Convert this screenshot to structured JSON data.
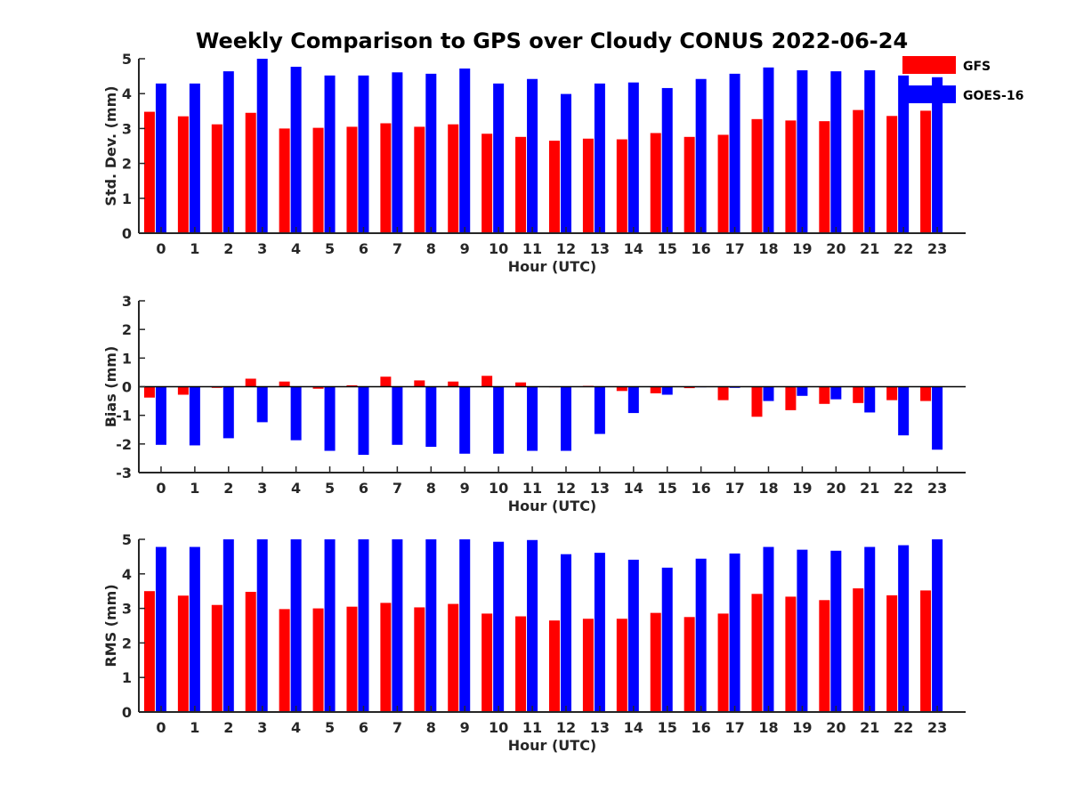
{
  "title": "Weekly Comparison to GPS over Cloudy CONUS 2022-06-24",
  "legend": [
    {
      "name": "GFS",
      "color": "#ff0000"
    },
    {
      "name": "GOES-16",
      "color": "#0000ff"
    }
  ],
  "chart_data": [
    {
      "type": "bar",
      "categories": [
        "0",
        "1",
        "2",
        "3",
        "4",
        "5",
        "6",
        "7",
        "8",
        "9",
        "10",
        "11",
        "12",
        "13",
        "14",
        "15",
        "16",
        "17",
        "18",
        "19",
        "20",
        "21",
        "22",
        "23"
      ],
      "xlabel": "Hour (UTC)",
      "ylabel": "Std. Dev. (mm)",
      "ylim": [
        0,
        5
      ],
      "yticks": [
        0,
        1,
        2,
        3,
        4,
        5
      ],
      "series": [
        {
          "name": "GFS",
          "color": "#ff0000",
          "values": [
            3.48,
            3.35,
            3.12,
            3.45,
            3.0,
            3.02,
            3.05,
            3.15,
            3.05,
            3.12,
            2.85,
            2.76,
            2.65,
            2.71,
            2.69,
            2.87,
            2.76,
            2.82,
            3.27,
            3.23,
            3.21,
            3.53,
            3.36,
            3.51
          ]
        },
        {
          "name": "GOES-16",
          "color": "#0000ff",
          "values": [
            4.29,
            4.29,
            4.64,
            5.0,
            4.77,
            4.52,
            4.52,
            4.61,
            4.57,
            4.72,
            4.29,
            4.42,
            3.99,
            4.29,
            4.32,
            4.16,
            4.42,
            4.57,
            4.75,
            4.67,
            4.64,
            4.67,
            4.52,
            4.47
          ]
        }
      ]
    },
    {
      "type": "bar",
      "categories": [
        "0",
        "1",
        "2",
        "3",
        "4",
        "5",
        "6",
        "7",
        "8",
        "9",
        "10",
        "11",
        "12",
        "13",
        "14",
        "15",
        "16",
        "17",
        "18",
        "19",
        "20",
        "21",
        "22",
        "23"
      ],
      "xlabel": "Hour (UTC)",
      "ylabel": "Bias (mm)",
      "ylim": [
        -3,
        3
      ],
      "yticks": [
        -3,
        -2,
        -1,
        0,
        1,
        2,
        3
      ],
      "series": [
        {
          "name": "GFS",
          "color": "#ff0000",
          "values": [
            -0.38,
            -0.28,
            -0.04,
            0.28,
            0.18,
            -0.07,
            0.05,
            0.35,
            0.22,
            0.18,
            0.38,
            0.15,
            -0.02,
            0.03,
            -0.15,
            -0.23,
            -0.05,
            -0.47,
            -1.05,
            -0.82,
            -0.6,
            -0.57,
            -0.47,
            -0.5
          ]
        },
        {
          "name": "GOES-16",
          "color": "#0000ff",
          "values": [
            -2.03,
            -2.05,
            -1.8,
            -1.24,
            -1.87,
            -2.24,
            -2.38,
            -2.03,
            -2.1,
            -2.34,
            -2.34,
            -2.24,
            -2.24,
            -1.65,
            -0.92,
            -0.28,
            -0.02,
            -0.04,
            -0.5,
            -0.32,
            -0.44,
            -0.9,
            -1.7,
            -2.2
          ]
        }
      ]
    },
    {
      "type": "bar",
      "categories": [
        "0",
        "1",
        "2",
        "3",
        "4",
        "5",
        "6",
        "7",
        "8",
        "9",
        "10",
        "11",
        "12",
        "13",
        "14",
        "15",
        "16",
        "17",
        "18",
        "19",
        "20",
        "21",
        "22",
        "23"
      ],
      "xlabel": "Hour (UTC)",
      "ylabel": "RMS (mm)",
      "ylim": [
        0,
        5
      ],
      "yticks": [
        0,
        1,
        2,
        3,
        4,
        5
      ],
      "series": [
        {
          "name": "GFS",
          "color": "#ff0000",
          "values": [
            3.5,
            3.37,
            3.1,
            3.48,
            2.98,
            3.0,
            3.05,
            3.16,
            3.03,
            3.13,
            2.85,
            2.77,
            2.65,
            2.7,
            2.7,
            2.87,
            2.75,
            2.85,
            3.42,
            3.34,
            3.24,
            3.58,
            3.38,
            3.52
          ]
        },
        {
          "name": "GOES-16",
          "color": "#0000ff",
          "values": [
            4.78,
            4.78,
            5.0,
            5.0,
            5.0,
            5.0,
            5.0,
            5.0,
            5.0,
            5.0,
            4.93,
            4.98,
            4.57,
            4.61,
            4.41,
            4.18,
            4.44,
            4.59,
            4.78,
            4.7,
            4.67,
            4.78,
            4.83,
            5.0
          ]
        }
      ]
    }
  ]
}
